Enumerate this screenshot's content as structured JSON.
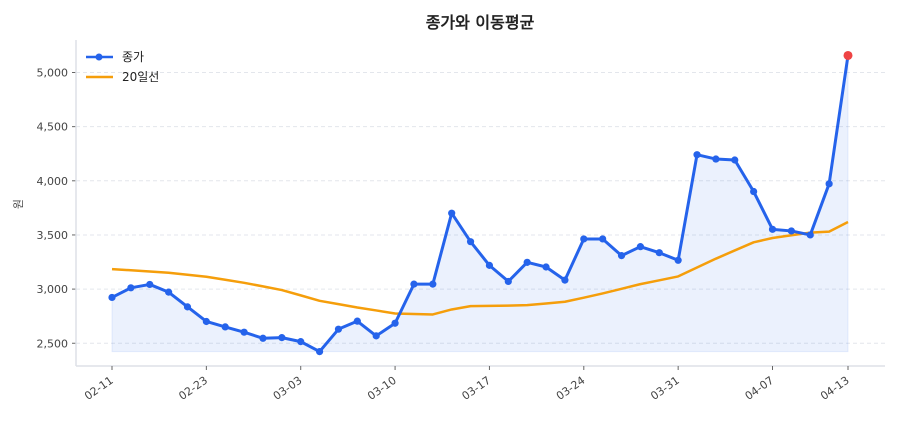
{
  "chart_data": {
    "type": "line",
    "title": "종가와 이동평균",
    "xlabel": "",
    "ylabel": "원",
    "ylim": [
      2290,
      5300
    ],
    "grid": true,
    "legend_placement": "top-left",
    "x": [
      "02-11",
      "02-12",
      "02-13",
      "02-19",
      "02-20",
      "02-23",
      "02-24",
      "02-25",
      "02-26",
      "02-27",
      "03-03",
      "03-04",
      "03-05",
      "03-06",
      "03-09",
      "03-10",
      "03-11",
      "03-12",
      "03-13",
      "03-16",
      "03-17",
      "03-18",
      "03-19",
      "03-20",
      "03-23",
      "03-24",
      "03-25",
      "03-26",
      "03-27",
      "03-30",
      "03-31",
      "04-01",
      "04-02",
      "04-03",
      "04-06",
      "04-07",
      "04-08",
      "04-09",
      "04-10",
      "04-13"
    ],
    "xticks": [
      "02-11",
      "02-23",
      "03-03",
      "03-10",
      "03-17",
      "03-24",
      "03-31",
      "04-07",
      "04-13"
    ],
    "yticks": [
      2500,
      3000,
      3500,
      4000,
      4500,
      5000
    ],
    "ytick_labels": [
      "2,500",
      "3,000",
      "3,500",
      "4,000",
      "4,500",
      "5,000"
    ],
    "series": [
      {
        "name": "종가",
        "color": "#2563eb",
        "markers": true,
        "fill": true,
        "values": [
          2923,
          3012,
          3043,
          2972,
          2836,
          2701,
          2651,
          2602,
          2546,
          2552,
          2515,
          2423,
          2630,
          2704,
          2568,
          2685,
          3046,
          3046,
          3701,
          3438,
          3219,
          3071,
          3247,
          3204,
          3083,
          3463,
          3463,
          3309,
          3392,
          3336,
          3266,
          4241,
          4201,
          4192,
          3901,
          3552,
          3537,
          3500,
          3972,
          5157
        ]
      },
      {
        "name": "20일선",
        "color": "#f59e0b",
        "markers": false,
        "values": [
          3185,
          3174,
          3163,
          3151,
          3133,
          3114,
          3086,
          3058,
          3025,
          2991,
          2942,
          2892,
          2861,
          2830,
          2803,
          2775,
          2770,
          2766,
          2812,
          2843,
          2845,
          2848,
          2852,
          2867,
          2883,
          2921,
          2960,
          3003,
          3046,
          3081,
          3117,
          3199,
          3281,
          3357,
          3432,
          3472,
          3497,
          3521,
          3531,
          3620
        ]
      }
    ],
    "highlight": {
      "index": 39,
      "value": 5157,
      "color": "#ef4444"
    }
  }
}
